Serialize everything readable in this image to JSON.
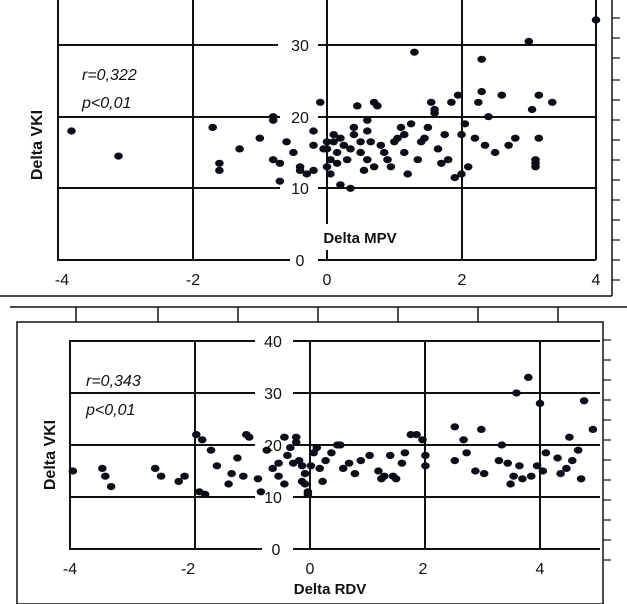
{
  "chart_data": [
    {
      "type": "scatter",
      "title": "",
      "xlabel": "Delta MPV",
      "ylabel": "Delta VKI",
      "xlim": [
        -4,
        4
      ],
      "ylim": [
        0,
        40
      ],
      "x_ticks": [
        "-4",
        "-2",
        "0",
        "2",
        "4"
      ],
      "y_ticks": [
        "0",
        "10",
        "20",
        "30"
      ],
      "grid": true,
      "annotations": {
        "r": "r=0,322",
        "p": "p<0,01"
      },
      "series": [
        {
          "points": [
            [
              -3.8,
              18
            ],
            [
              -3.1,
              14.5
            ],
            [
              -1.7,
              18.5
            ],
            [
              -1.6,
              13.5
            ],
            [
              -1.6,
              12.5
            ],
            [
              -1.3,
              15.5
            ],
            [
              -1.0,
              17
            ],
            [
              -0.8,
              19.5
            ],
            [
              -0.8,
              20
            ],
            [
              -0.8,
              14
            ],
            [
              -0.7,
              13.5
            ],
            [
              -0.7,
              11
            ],
            [
              -0.6,
              16.5
            ],
            [
              -0.5,
              15
            ],
            [
              -0.4,
              13
            ],
            [
              -0.4,
              12.5
            ],
            [
              -0.3,
              12
            ],
            [
              -0.2,
              12.5
            ],
            [
              -0.2,
              16
            ],
            [
              -0.2,
              18
            ],
            [
              -0.1,
              22
            ],
            [
              -0.05,
              15.5
            ],
            [
              0.0,
              13
            ],
            [
              0.0,
              15.5
            ],
            [
              0.0,
              16.5
            ],
            [
              0.05,
              12
            ],
            [
              0.05,
              14
            ],
            [
              0.1,
              17.5
            ],
            [
              0.1,
              16.5
            ],
            [
              0.15,
              15
            ],
            [
              0.15,
              13.5
            ],
            [
              0.2,
              17
            ],
            [
              0.2,
              10.5
            ],
            [
              0.25,
              16
            ],
            [
              0.3,
              14
            ],
            [
              0.35,
              15.5
            ],
            [
              0.35,
              10
            ],
            [
              0.4,
              17.5
            ],
            [
              0.4,
              18.5
            ],
            [
              0.45,
              21.5
            ],
            [
              0.5,
              15
            ],
            [
              0.5,
              16.5
            ],
            [
              0.55,
              12.5
            ],
            [
              0.6,
              14
            ],
            [
              0.6,
              18
            ],
            [
              0.6,
              19.5
            ],
            [
              0.65,
              16.5
            ],
            [
              0.7,
              13
            ],
            [
              0.7,
              22
            ],
            [
              0.75,
              21.5
            ],
            [
              0.8,
              16
            ],
            [
              0.85,
              15
            ],
            [
              0.9,
              14
            ],
            [
              0.95,
              13
            ],
            [
              1.0,
              16.5
            ],
            [
              1.05,
              17
            ],
            [
              1.1,
              18.5
            ],
            [
              1.15,
              15
            ],
            [
              1.15,
              17.5
            ],
            [
              1.2,
              12
            ],
            [
              1.25,
              19
            ],
            [
              1.3,
              29
            ],
            [
              1.35,
              14
            ],
            [
              1.4,
              16.5
            ],
            [
              1.45,
              17
            ],
            [
              1.5,
              18.5
            ],
            [
              1.55,
              22
            ],
            [
              1.6,
              21
            ],
            [
              1.6,
              20.5
            ],
            [
              1.65,
              15.5
            ],
            [
              1.7,
              13.5
            ],
            [
              1.75,
              17.5
            ],
            [
              1.8,
              14
            ],
            [
              1.85,
              22
            ],
            [
              1.9,
              11.5
            ],
            [
              1.95,
              23
            ],
            [
              2.0,
              17.5
            ],
            [
              2.0,
              12
            ],
            [
              2.05,
              19
            ],
            [
              2.1,
              13
            ],
            [
              2.2,
              17
            ],
            [
              2.25,
              22
            ],
            [
              2.3,
              23.5
            ],
            [
              2.3,
              28
            ],
            [
              2.35,
              16
            ],
            [
              2.4,
              20
            ],
            [
              2.5,
              15
            ],
            [
              2.6,
              23
            ],
            [
              2.7,
              16
            ],
            [
              2.8,
              17
            ],
            [
              3.0,
              30.5
            ],
            [
              3.05,
              21
            ],
            [
              3.1,
              14
            ],
            [
              3.1,
              13.5
            ],
            [
              3.1,
              13
            ],
            [
              3.15,
              17
            ],
            [
              3.15,
              23
            ],
            [
              3.35,
              22
            ],
            [
              4.0,
              33.5
            ]
          ]
        }
      ]
    },
    {
      "type": "scatter",
      "title": "",
      "xlabel": "Delta RDV",
      "ylabel": "Delta VKI",
      "xlim": [
        -4,
        5.2
      ],
      "ylim": [
        0,
        40
      ],
      "x_ticks": [
        "-4",
        "-2",
        "0",
        "2",
        "4"
      ],
      "y_ticks": [
        "0",
        "10",
        "20",
        "30",
        "40"
      ],
      "grid": true,
      "annotations": {
        "r": "r=0,343",
        "p": "p<0,01"
      },
      "series": [
        {
          "points": [
            [
              -3.95,
              15
            ],
            [
              -3.45,
              15.5
            ],
            [
              -3.4,
              14
            ],
            [
              -3.3,
              12
            ],
            [
              -2.55,
              15.5
            ],
            [
              -2.45,
              14
            ],
            [
              -2.15,
              13
            ],
            [
              -2.05,
              14
            ],
            [
              -1.85,
              22
            ],
            [
              -1.8,
              11
            ],
            [
              -1.75,
              21
            ],
            [
              -1.7,
              10.5
            ],
            [
              -1.6,
              19
            ],
            [
              -1.5,
              16
            ],
            [
              -1.3,
              12.5
            ],
            [
              -1.25,
              14.5
            ],
            [
              -1.15,
              17.5
            ],
            [
              -1.05,
              14
            ],
            [
              -1.0,
              22
            ],
            [
              -0.95,
              21.5
            ],
            [
              -0.8,
              13.5
            ],
            [
              -0.75,
              11
            ],
            [
              -0.65,
              19
            ],
            [
              -0.55,
              15.5
            ],
            [
              -0.45,
              16.5
            ],
            [
              -0.45,
              14
            ],
            [
              -0.35,
              12.5
            ],
            [
              -0.35,
              21.5
            ],
            [
              -0.3,
              18
            ],
            [
              -0.25,
              19.5
            ],
            [
              -0.2,
              16.5
            ],
            [
              -0.15,
              21.5
            ],
            [
              -0.15,
              20.5
            ],
            [
              -0.1,
              17
            ],
            [
              -0.05,
              16
            ],
            [
              -0.05,
              13
            ],
            [
              0.0,
              14.5
            ],
            [
              0.0,
              12.5
            ],
            [
              0.05,
              11
            ],
            [
              0.05,
              10.5
            ],
            [
              0.1,
              16
            ],
            [
              0.15,
              18.5
            ],
            [
              0.2,
              19.5
            ],
            [
              0.25,
              15.5
            ],
            [
              0.3,
              13
            ],
            [
              0.35,
              17
            ],
            [
              0.45,
              18.5
            ],
            [
              0.55,
              20
            ],
            [
              0.6,
              20
            ],
            [
              0.65,
              15.5
            ],
            [
              0.75,
              16.5
            ],
            [
              0.85,
              14.5
            ],
            [
              0.95,
              17
            ],
            [
              1.1,
              18
            ],
            [
              1.25,
              15
            ],
            [
              1.3,
              13.5
            ],
            [
              1.35,
              14
            ],
            [
              1.45,
              18
            ],
            [
              1.5,
              14
            ],
            [
              1.55,
              13.5
            ],
            [
              1.65,
              16.5
            ],
            [
              1.7,
              18.5
            ],
            [
              1.8,
              22
            ],
            [
              1.9,
              22
            ],
            [
              2.0,
              21
            ],
            [
              2.05,
              18
            ],
            [
              2.05,
              16
            ],
            [
              2.55,
              23.5
            ],
            [
              2.55,
              17
            ],
            [
              2.7,
              21
            ],
            [
              2.75,
              18.5
            ],
            [
              2.9,
              15
            ],
            [
              3.0,
              23
            ],
            [
              3.05,
              14.5
            ],
            [
              3.3,
              17
            ],
            [
              3.35,
              20
            ],
            [
              3.45,
              16.5
            ],
            [
              3.5,
              12.5
            ],
            [
              3.55,
              14
            ],
            [
              3.6,
              30
            ],
            [
              3.65,
              16
            ],
            [
              3.7,
              13.5
            ],
            [
              3.8,
              33
            ],
            [
              3.85,
              14
            ],
            [
              3.95,
              16
            ],
            [
              4.0,
              28
            ],
            [
              4.05,
              15
            ],
            [
              4.1,
              18.5
            ],
            [
              4.3,
              17.5
            ],
            [
              4.35,
              14.5
            ],
            [
              4.45,
              15.5
            ],
            [
              4.5,
              21.5
            ],
            [
              4.55,
              17
            ],
            [
              4.65,
              19
            ],
            [
              4.7,
              13.5
            ],
            [
              4.75,
              28.5
            ],
            [
              4.9,
              23
            ]
          ]
        }
      ]
    }
  ]
}
